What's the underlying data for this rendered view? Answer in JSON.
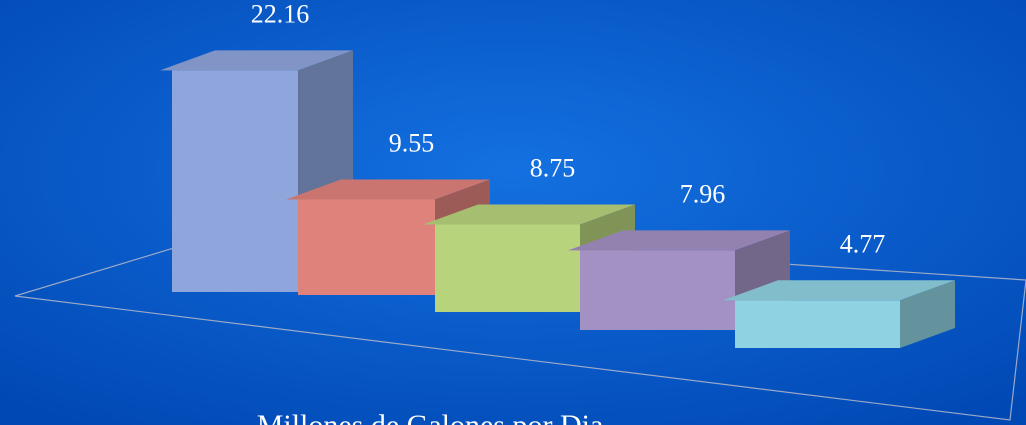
{
  "chart_data": {
    "type": "bar3d",
    "categories": [
      null,
      null,
      null,
      null,
      null
    ],
    "values": [
      22.16,
      9.55,
      8.75,
      7.96,
      4.77
    ],
    "colors": [
      "#8ea6dc",
      "#e0827c",
      "#b7d37c",
      "#a391c3",
      "#8fd2e2"
    ],
    "xlabel": "Millones de Galones por Dia"
  }
}
